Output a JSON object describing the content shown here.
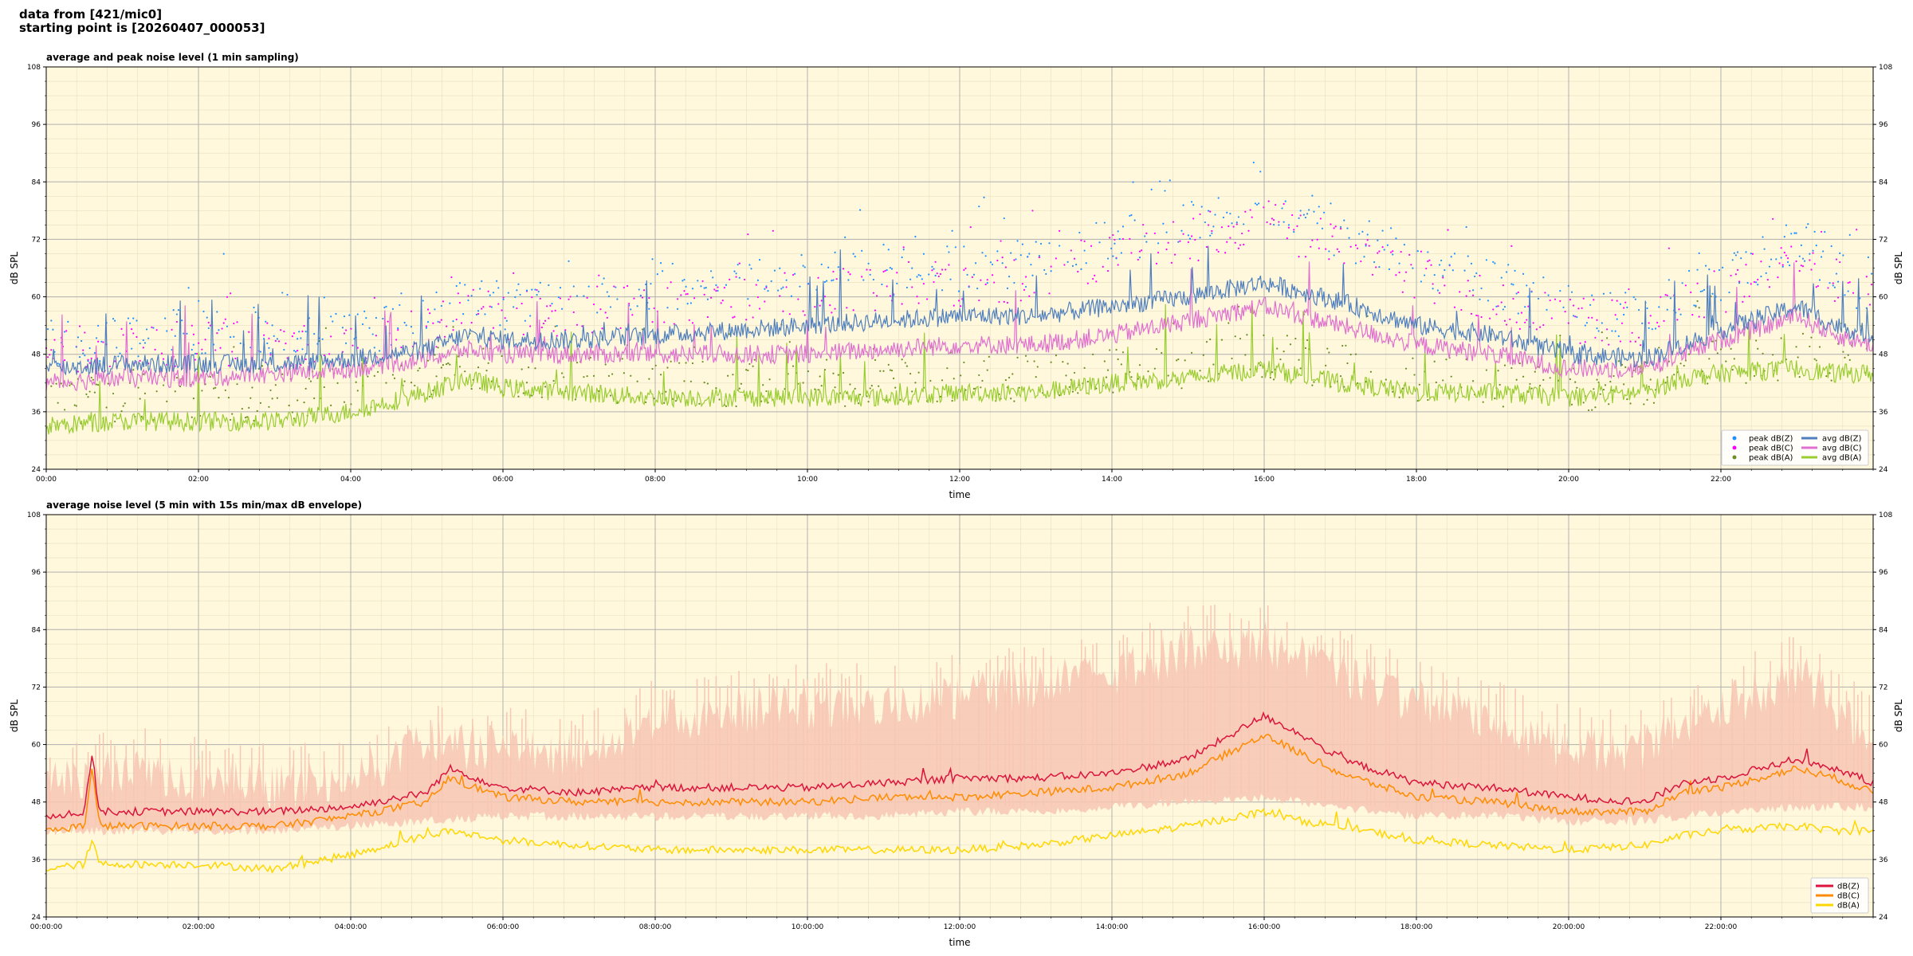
{
  "header": {
    "line1": "data from [421/mic0]",
    "line2": "starting point is [20260407_000053]"
  },
  "colors": {
    "plot_bg": "#fff8dc",
    "avg_z": "#4f7fbf",
    "avg_c": "#e070d0",
    "avg_a": "#9acd32",
    "peak_z": "#1f90ff",
    "peak_c": "#ff00ff",
    "peak_a": "#6b8e23",
    "env": "#f7c7b4",
    "dbz": "#dc143c",
    "dbc": "#ff8c00",
    "dba": "#ffd700"
  },
  "chart_data": [
    {
      "type": "line",
      "title": "average and peak noise level (1 min sampling)",
      "xlabel": "time",
      "ylabel": "dB SPL",
      "xlim": [
        0,
        24
      ],
      "ylim": [
        24,
        108
      ],
      "yticks": [
        "24",
        "36",
        "48",
        "60",
        "72",
        "84",
        "96",
        "108"
      ],
      "xticks": [
        "00:00",
        "02:00",
        "04:00",
        "06:00",
        "08:00",
        "10:00",
        "12:00",
        "14:00",
        "16:00",
        "18:00",
        "20:00",
        "22:00"
      ],
      "grid": true,
      "legend_position": "bottom-right",
      "legend": [
        "peak dB(Z)",
        "peak dB(C)",
        "peak dB(A)",
        "avg dB(Z)",
        "avg dB(C)",
        "avg dB(A)"
      ],
      "series": [
        {
          "name": "avg dB(Z)",
          "x": [
            0,
            1,
            2,
            3,
            4,
            5,
            5.5,
            6,
            7,
            8,
            9,
            10,
            11,
            12,
            13,
            14,
            15,
            16,
            17,
            18,
            19,
            20,
            21,
            21.5,
            22,
            23,
            23.5,
            24
          ],
          "values": [
            45,
            46,
            46,
            46,
            47,
            49,
            52,
            51,
            51,
            52,
            53,
            54,
            55,
            56,
            56,
            58,
            60,
            63,
            59,
            54,
            52,
            48,
            47,
            50,
            53,
            58,
            54,
            52
          ]
        },
        {
          "name": "avg dB(C)",
          "x": [
            0,
            1,
            2,
            3,
            4,
            5,
            5.5,
            6,
            7,
            8,
            9,
            10,
            11,
            12,
            13,
            14,
            15,
            16,
            17,
            18,
            19,
            20,
            21,
            21.5,
            22,
            23,
            23.5,
            24
          ],
          "values": [
            42,
            43,
            43,
            44,
            45,
            47,
            49,
            48,
            48,
            48,
            48,
            48,
            49,
            50,
            50,
            52,
            55,
            58,
            54,
            50,
            48,
            45,
            45,
            48,
            51,
            56,
            52,
            50
          ]
        },
        {
          "name": "avg dB(A)",
          "x": [
            0,
            1,
            2,
            3,
            4,
            5,
            5.5,
            6,
            7,
            8,
            9,
            10,
            11,
            12,
            13,
            14,
            15,
            16,
            17,
            18,
            19,
            20,
            21,
            21.5,
            22,
            23,
            23.5,
            24
          ],
          "values": [
            33,
            34,
            34,
            34,
            36,
            40,
            43,
            41,
            40,
            39,
            39,
            39,
            39,
            40,
            40,
            42,
            43,
            45,
            42,
            40,
            40,
            39,
            40,
            43,
            44,
            45,
            44,
            44
          ]
        },
        {
          "name": "peak dB(Z)",
          "x": [
            0,
            1,
            2,
            3,
            4,
            5,
            5.5,
            6,
            7,
            8,
            9,
            10,
            11,
            12,
            13,
            14,
            15,
            16,
            17,
            18,
            19,
            20,
            21,
            21.5,
            22,
            23,
            23.5,
            24
          ],
          "values": [
            50,
            52,
            53,
            52,
            52,
            55,
            60,
            58,
            59,
            62,
            63,
            64,
            65,
            66,
            67,
            72,
            75,
            78,
            73,
            67,
            63,
            58,
            56,
            60,
            63,
            72,
            66,
            60
          ]
        },
        {
          "name": "peak dB(C)",
          "x": [
            0,
            1,
            2,
            3,
            4,
            5,
            5.5,
            6,
            7,
            8,
            9,
            10,
            11,
            12,
            13,
            14,
            15,
            16,
            17,
            18,
            19,
            20,
            21,
            21.5,
            22,
            23,
            23.5,
            24
          ],
          "values": [
            48,
            50,
            50,
            50,
            50,
            53,
            58,
            56,
            57,
            59,
            60,
            61,
            62,
            63,
            64,
            69,
            72,
            76,
            70,
            64,
            60,
            55,
            54,
            58,
            61,
            70,
            64,
            58
          ]
        },
        {
          "name": "peak dB(A)",
          "x": [
            0,
            1,
            2,
            3,
            4,
            5,
            5.5,
            6,
            7,
            8,
            9,
            10,
            11,
            12,
            13,
            14,
            15,
            16,
            17,
            18,
            19,
            20,
            21,
            21.5,
            22,
            23,
            23.5,
            24
          ],
          "values": [
            38,
            39,
            39,
            39,
            41,
            44,
            46,
            44,
            43,
            42,
            42,
            42,
            42,
            43,
            43,
            45,
            46,
            48,
            45,
            43,
            42,
            41,
            42,
            45,
            46,
            48,
            47,
            46
          ]
        }
      ]
    },
    {
      "type": "line",
      "title": "average noise level (5 min with 15s min/max dB envelope)",
      "xlabel": "time",
      "ylabel": "dB SPL",
      "xlim": [
        0,
        24
      ],
      "ylim": [
        24,
        108
      ],
      "yticks": [
        "24",
        "36",
        "48",
        "60",
        "72",
        "84",
        "96",
        "108"
      ],
      "xticks": [
        "00:00:00",
        "02:00:00",
        "04:00:00",
        "06:00:00",
        "08:00:00",
        "10:00:00",
        "12:00:00",
        "14:00:00",
        "16:00:00",
        "18:00:00",
        "20:00:00",
        "22:00:00"
      ],
      "grid": true,
      "legend_position": "bottom-right",
      "legend": [
        "dB(Z)",
        "dB(C)",
        "dB(A)"
      ],
      "series": [
        {
          "name": "dB(Z)",
          "x": [
            0,
            0.5,
            0.6,
            0.7,
            1,
            2,
            3,
            4,
            5,
            5.3,
            6,
            7,
            8,
            9,
            10,
            11,
            12,
            13,
            14,
            15,
            16,
            16.5,
            17,
            18,
            19,
            20,
            21,
            21.5,
            22,
            23,
            23.5,
            24
          ],
          "values": [
            45,
            46,
            58,
            46,
            46,
            46,
            46,
            47,
            50,
            55,
            51,
            50,
            51,
            51,
            51,
            52,
            53,
            53,
            54,
            57,
            66,
            62,
            57,
            52,
            51,
            49,
            48,
            52,
            53,
            57,
            55,
            52
          ]
        },
        {
          "name": "dB(C)",
          "x": [
            0,
            0.5,
            0.6,
            0.7,
            1,
            2,
            3,
            4,
            5,
            5.3,
            6,
            7,
            8,
            9,
            10,
            11,
            12,
            13,
            14,
            15,
            16,
            16.5,
            17,
            18,
            19,
            20,
            21,
            21.5,
            22,
            23,
            23.5,
            24
          ],
          "values": [
            42,
            43,
            55,
            43,
            43,
            43,
            43,
            45,
            48,
            53,
            49,
            48,
            48,
            48,
            48,
            49,
            49,
            50,
            51,
            54,
            62,
            58,
            54,
            49,
            48,
            46,
            46,
            50,
            51,
            55,
            53,
            50
          ]
        },
        {
          "name": "dB(A)",
          "x": [
            0,
            0.5,
            0.6,
            0.7,
            1,
            2,
            3,
            4,
            5,
            5.3,
            6,
            7,
            8,
            9,
            10,
            11,
            12,
            13,
            14,
            15,
            16,
            16.5,
            17,
            18,
            19,
            20,
            21,
            21.5,
            22,
            23,
            23.5,
            24
          ],
          "values": [
            34,
            35,
            40,
            35,
            35,
            35,
            34,
            37,
            41,
            42,
            40,
            39,
            38,
            38,
            38,
            38,
            38,
            39,
            41,
            43,
            46,
            44,
            43,
            40,
            39,
            38,
            39,
            41,
            42,
            43,
            42,
            42
          ]
        },
        {
          "name": "envelope_max",
          "x": [
            0,
            1,
            2,
            3,
            4,
            5,
            6,
            7,
            8,
            9,
            10,
            11,
            12,
            13,
            14,
            15,
            16,
            17,
            18,
            19,
            20,
            21,
            22,
            23,
            24
          ],
          "values": [
            56,
            60,
            58,
            56,
            58,
            65,
            64,
            63,
            70,
            72,
            73,
            74,
            75,
            77,
            80,
            85,
            86,
            80,
            74,
            70,
            64,
            64,
            72,
            80,
            66
          ]
        },
        {
          "name": "envelope_min",
          "x": [
            0,
            1,
            2,
            3,
            4,
            5,
            6,
            7,
            8,
            9,
            10,
            11,
            12,
            13,
            14,
            15,
            16,
            17,
            18,
            19,
            20,
            21,
            22,
            23,
            24
          ],
          "values": [
            43,
            43,
            43,
            43,
            44,
            45,
            46,
            46,
            46,
            46,
            46,
            46,
            47,
            47,
            48,
            49,
            50,
            48,
            46,
            46,
            45,
            45,
            47,
            48,
            48
          ]
        }
      ]
    }
  ]
}
